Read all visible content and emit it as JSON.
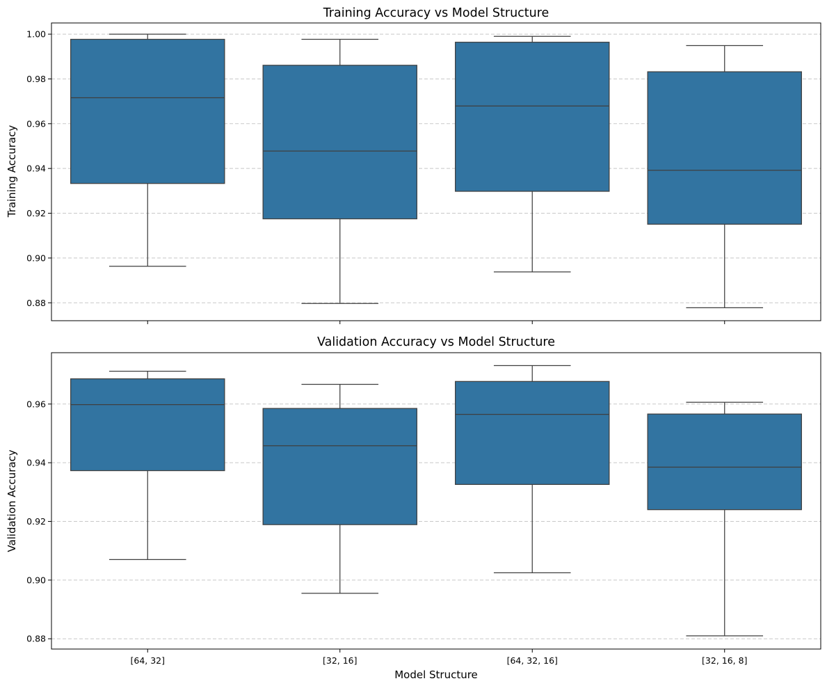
{
  "figure": {
    "xlabel": "Model Structure"
  },
  "colors": {
    "box_fill": "#3274a1",
    "box_edge": "#3f3f3f",
    "grid": "#c8c8c8",
    "axes": "#000000"
  },
  "chart_data": [
    {
      "type": "box",
      "title": "Training Accuracy vs Model Structure",
      "xlabel": "",
      "ylabel": "Training Accuracy",
      "categories": [
        "[64, 32]",
        "[32, 16]",
        "[64, 32, 16]",
        "[32, 16, 8]"
      ],
      "ylim": [
        0.872,
        1.005
      ],
      "yticks": [
        0.88,
        0.9,
        0.92,
        0.94,
        0.96,
        0.98,
        1.0
      ],
      "ytick_labels": [
        "0.88",
        "0.90",
        "0.92",
        "0.94",
        "0.96",
        "0.98",
        "1.00"
      ],
      "grid": "y-dashed",
      "x_tick_labels_visible": false,
      "boxes": [
        {
          "category": "[64, 32]",
          "whisker_low": 0.8963,
          "q1": 0.9333,
          "median": 0.9716,
          "q3": 0.9977,
          "whisker_high": 1.0
        },
        {
          "category": "[32, 16]",
          "whisker_low": 0.8797,
          "q1": 0.9175,
          "median": 0.9478,
          "q3": 0.9861,
          "whisker_high": 0.9977
        },
        {
          "category": "[64, 32, 16]",
          "whisker_low": 0.8938,
          "q1": 0.9298,
          "median": 0.9679,
          "q3": 0.9964,
          "whisker_high": 0.999
        },
        {
          "category": "[32, 16, 8]",
          "whisker_low": 0.8778,
          "q1": 0.9151,
          "median": 0.9392,
          "q3": 0.9832,
          "whisker_high": 0.9949
        }
      ]
    },
    {
      "type": "box",
      "title": "Validation Accuracy vs Model Structure",
      "xlabel": "Model Structure",
      "ylabel": "Validation Accuracy",
      "categories": [
        "[64, 32]",
        "[32, 16]",
        "[64, 32, 16]",
        "[32, 16, 8]"
      ],
      "ylim": [
        0.8765,
        0.9775
      ],
      "yticks": [
        0.88,
        0.9,
        0.92,
        0.94,
        0.96
      ],
      "ytick_labels": [
        "0.88",
        "0.90",
        "0.92",
        "0.94",
        "0.96"
      ],
      "grid": "y-dashed",
      "x_tick_labels_visible": true,
      "boxes": [
        {
          "category": "[64, 32]",
          "whisker_low": 0.907,
          "q1": 0.9373,
          "median": 0.9598,
          "q3": 0.9686,
          "whisker_high": 0.9712
        },
        {
          "category": "[32, 16]",
          "whisker_low": 0.8955,
          "q1": 0.9189,
          "median": 0.9458,
          "q3": 0.9585,
          "whisker_high": 0.9667
        },
        {
          "category": "[64, 32, 16]",
          "whisker_low": 0.9025,
          "q1": 0.9326,
          "median": 0.9565,
          "q3": 0.9677,
          "whisker_high": 0.9731
        },
        {
          "category": "[32, 16, 8]",
          "whisker_low": 0.881,
          "q1": 0.924,
          "median": 0.9385,
          "q3": 0.9566,
          "whisker_high": 0.9606
        }
      ]
    }
  ]
}
